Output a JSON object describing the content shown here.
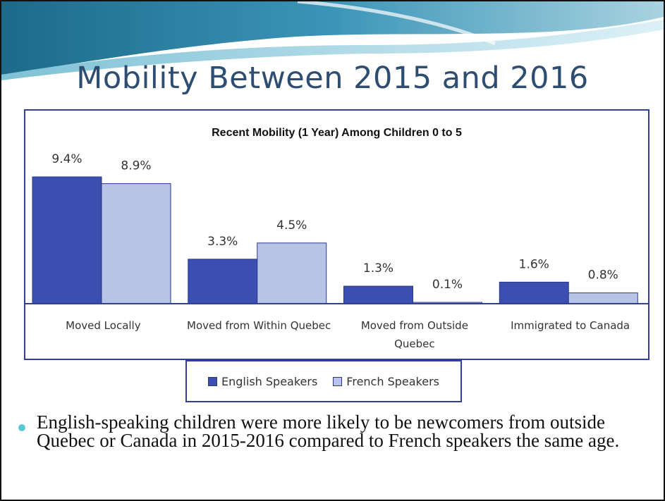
{
  "slide": {
    "title": "Mobility Between 2015 and 2016",
    "bullet": "English-speaking children were more likely to be newcomers from outside Quebec or Canada in 2015-2016 compared to French speakers the same age."
  },
  "colors": {
    "english": "#3a4fb0",
    "french": "#b9c3e6",
    "title": "#2e4d72",
    "frame": "#2f3f9a",
    "bullet": "#5cc7d6"
  },
  "chart_data": {
    "type": "bar",
    "title": "Recent Mobility (1 Year) Among Children 0 to 5",
    "categories": [
      "Moved Locally",
      "Moved from Within Quebec",
      "Moved from Outside Quebec",
      "Immigrated to Canada"
    ],
    "category_lines": [
      [
        "Moved Locally"
      ],
      [
        "Moved from Within Quebec"
      ],
      [
        "Moved from Outside",
        "Quebec"
      ],
      [
        "Immigrated to Canada"
      ]
    ],
    "series": [
      {
        "name": "English Speakers",
        "values": [
          9.4,
          3.3,
          1.3,
          1.6
        ],
        "labels": [
          "9.4%",
          "3.3%",
          "1.3%",
          "1.6%"
        ],
        "color": "#3a4fb0"
      },
      {
        "name": "French Speakers",
        "values": [
          8.9,
          4.5,
          0.1,
          0.8
        ],
        "labels": [
          "8.9%",
          "4.5%",
          "0.1%",
          "0.8%"
        ],
        "color": "#b9c3e6"
      }
    ],
    "ylim": [
      0,
      9.4
    ],
    "xlabel": "",
    "ylabel": "",
    "grid": false,
    "legend_position": "bottom"
  }
}
